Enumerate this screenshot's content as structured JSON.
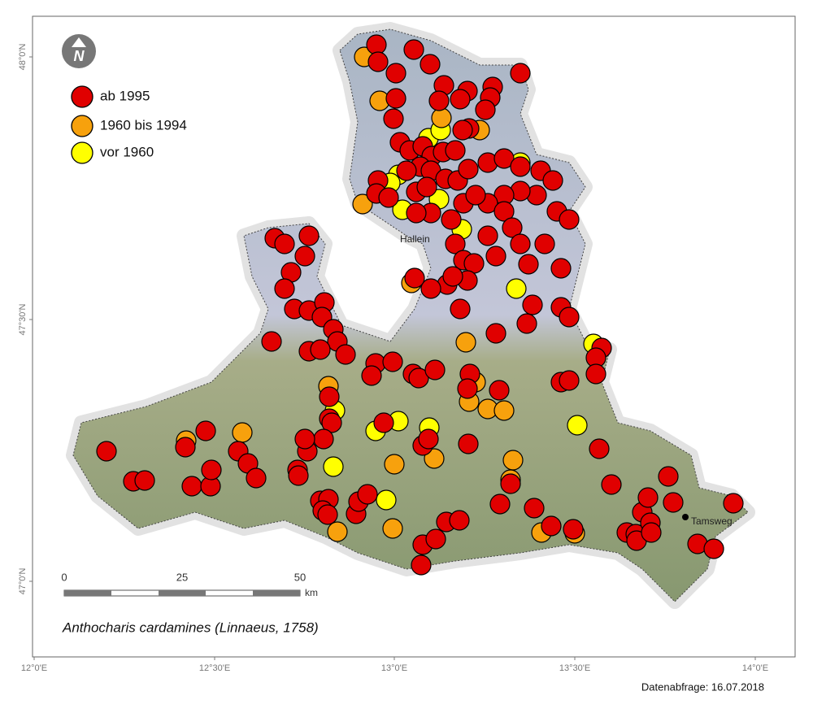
{
  "legend": {
    "items": [
      "ab 1995",
      "1960 bis 1994",
      "vor 1960"
    ]
  },
  "lat_ticks": [
    "48°0'N",
    "47°30'N",
    "47°0'N"
  ],
  "lon_ticks": [
    "12°0'E",
    "12°30'E",
    "13°0'E",
    "13°30'E",
    "14°0'E"
  ],
  "scale": {
    "labels": [
      "0",
      "25",
      "50"
    ],
    "unit": "km"
  },
  "places": [
    "Hallein",
    "Tamsweg"
  ],
  "species": "Anthocharis cardamines (Linnaeus, 1758)",
  "date": "Datenabfrage: 16.07.2018"
}
